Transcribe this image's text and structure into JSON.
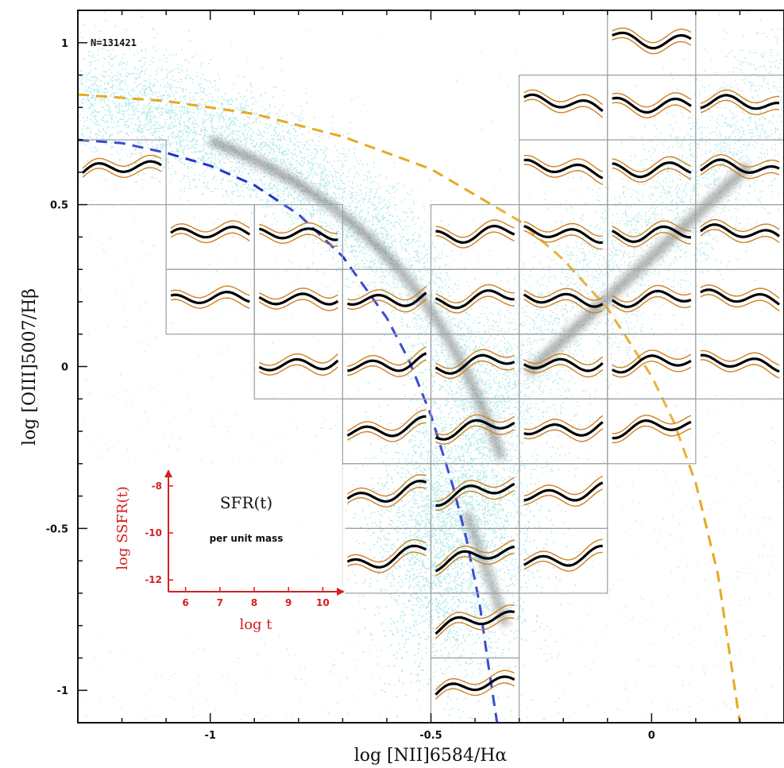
{
  "chart_data": {
    "type": "scatter",
    "title": "",
    "xlabel": "log [NII]6584/Hα",
    "ylabel": "log [OIII]5007/Hβ",
    "xlim": [
      -1.3,
      0.3
    ],
    "ylim": [
      -1.1,
      1.1
    ],
    "x_ticks": [
      -1,
      -0.5,
      0
    ],
    "y_ticks": [
      1,
      0.5,
      0,
      -0.5,
      -1
    ],
    "count_label": "N=131421",
    "grid": false,
    "curves": [
      {
        "name": "blue-dashed",
        "color": "#2233cc",
        "style": "dashed",
        "x": [
          -1.3,
          -1.2,
          -1.1,
          -1.0,
          -0.9,
          -0.8,
          -0.7,
          -0.6,
          -0.55,
          -0.5,
          -0.45,
          -0.42,
          -0.39,
          -0.37,
          -0.35
        ],
        "y": [
          0.7,
          0.69,
          0.66,
          0.62,
          0.56,
          0.47,
          0.34,
          0.15,
          0.02,
          -0.15,
          -0.37,
          -0.53,
          -0.73,
          -0.92,
          -1.1
        ]
      },
      {
        "name": "gold-dashed",
        "color": "#e8a820",
        "style": "dashed",
        "x": [
          -1.3,
          -1.1,
          -0.9,
          -0.7,
          -0.5,
          -0.3,
          -0.2,
          -0.1,
          0.0,
          0.05,
          0.1,
          0.15,
          0.2
        ],
        "y": [
          0.84,
          0.82,
          0.78,
          0.71,
          0.61,
          0.45,
          0.33,
          0.18,
          -0.03,
          -0.17,
          -0.36,
          -0.64,
          -1.1
        ]
      }
    ],
    "tiles": [
      {
        "xmin": -1.3,
        "xmax": -1.1,
        "ymin": 0.5,
        "ymax": 0.7
      },
      {
        "xmin": -1.1,
        "xmax": -0.9,
        "ymin": 0.3,
        "ymax": 0.5
      },
      {
        "xmin": -1.1,
        "xmax": -0.9,
        "ymin": 0.1,
        "ymax": 0.3
      },
      {
        "xmin": -0.9,
        "xmax": -0.7,
        "ymin": 0.3,
        "ymax": 0.5
      },
      {
        "xmin": -0.9,
        "xmax": -0.7,
        "ymin": 0.1,
        "ymax": 0.3
      },
      {
        "xmin": -0.9,
        "xmax": -0.7,
        "ymin": -0.1,
        "ymax": 0.1
      },
      {
        "xmin": -0.7,
        "xmax": -0.5,
        "ymin": 0.1,
        "ymax": 0.3
      },
      {
        "xmin": -0.7,
        "xmax": -0.5,
        "ymin": -0.1,
        "ymax": 0.1
      },
      {
        "xmin": -0.7,
        "xmax": -0.5,
        "ymin": -0.3,
        "ymax": -0.1
      },
      {
        "xmin": -0.7,
        "xmax": -0.5,
        "ymin": -0.5,
        "ymax": -0.3
      },
      {
        "xmin": -0.7,
        "xmax": -0.5,
        "ymin": -0.7,
        "ymax": -0.5
      },
      {
        "xmin": -0.5,
        "xmax": -0.3,
        "ymin": 0.3,
        "ymax": 0.5
      },
      {
        "xmin": -0.5,
        "xmax": -0.3,
        "ymin": 0.1,
        "ymax": 0.3
      },
      {
        "xmin": -0.5,
        "xmax": -0.3,
        "ymin": -0.1,
        "ymax": 0.1
      },
      {
        "xmin": -0.5,
        "xmax": -0.3,
        "ymin": -0.3,
        "ymax": -0.1
      },
      {
        "xmin": -0.5,
        "xmax": -0.3,
        "ymin": -0.5,
        "ymax": -0.3
      },
      {
        "xmin": -0.5,
        "xmax": -0.3,
        "ymin": -0.7,
        "ymax": -0.5
      },
      {
        "xmin": -0.5,
        "xmax": -0.3,
        "ymin": -0.9,
        "ymax": -0.7
      },
      {
        "xmin": -0.5,
        "xmax": -0.3,
        "ymin": -1.1,
        "ymax": -0.9
      },
      {
        "xmin": -0.3,
        "xmax": -0.1,
        "ymin": 0.7,
        "ymax": 0.9
      },
      {
        "xmin": -0.3,
        "xmax": -0.1,
        "ymin": 0.5,
        "ymax": 0.7
      },
      {
        "xmin": -0.3,
        "xmax": -0.1,
        "ymin": 0.3,
        "ymax": 0.5
      },
      {
        "xmin": -0.3,
        "xmax": -0.1,
        "ymin": 0.1,
        "ymax": 0.3
      },
      {
        "xmin": -0.3,
        "xmax": -0.1,
        "ymin": -0.1,
        "ymax": 0.1
      },
      {
        "xmin": -0.3,
        "xmax": -0.1,
        "ymin": -0.3,
        "ymax": -0.1
      },
      {
        "xmin": -0.3,
        "xmax": -0.1,
        "ymin": -0.5,
        "ymax": -0.3
      },
      {
        "xmin": -0.3,
        "xmax": -0.1,
        "ymin": -0.7,
        "ymax": -0.5
      },
      {
        "xmin": -0.1,
        "xmax": 0.1,
        "ymin": 0.9,
        "ymax": 1.1
      },
      {
        "xmin": -0.1,
        "xmax": 0.1,
        "ymin": 0.7,
        "ymax": 0.9
      },
      {
        "xmin": -0.1,
        "xmax": 0.1,
        "ymin": 0.5,
        "ymax": 0.7
      },
      {
        "xmin": -0.1,
        "xmax": 0.1,
        "ymin": 0.3,
        "ymax": 0.5
      },
      {
        "xmin": -0.1,
        "xmax": 0.1,
        "ymin": 0.1,
        "ymax": 0.3
      },
      {
        "xmin": -0.1,
        "xmax": 0.1,
        "ymin": -0.1,
        "ymax": 0.1
      },
      {
        "xmin": -0.1,
        "xmax": 0.1,
        "ymin": -0.3,
        "ymax": -0.1
      },
      {
        "xmin": 0.1,
        "xmax": 0.3,
        "ymin": 0.7,
        "ymax": 0.9
      },
      {
        "xmin": 0.1,
        "xmax": 0.3,
        "ymin": 0.5,
        "ymax": 0.7
      },
      {
        "xmin": 0.1,
        "xmax": 0.3,
        "ymin": 0.3,
        "ymax": 0.5
      },
      {
        "xmin": 0.1,
        "xmax": 0.3,
        "ymin": 0.1,
        "ymax": 0.3
      },
      {
        "xmin": 0.1,
        "xmax": 0.3,
        "ymin": -0.1,
        "ymax": 0.1
      }
    ],
    "inset": {
      "title": "SFR(t)",
      "subtitle": "per unit mass",
      "xlabel": "log t",
      "ylabel": "log SSFR(t)",
      "x_ticks": [
        "6",
        "7",
        "8",
        "9",
        "10"
      ],
      "y_ticks": [
        "-8",
        "-10",
        "-12"
      ],
      "xlim": [
        5.5,
        10.5
      ],
      "ylim": [
        -12.5,
        -7.5
      ],
      "axis_color": "#d42020"
    },
    "colors": {
      "points": "#2ec4c4",
      "dense": "#5a5a5a",
      "axes": "#111111",
      "tile_border": "#9aa0a0",
      "median": "#000000",
      "quartile": "#d08020"
    }
  }
}
